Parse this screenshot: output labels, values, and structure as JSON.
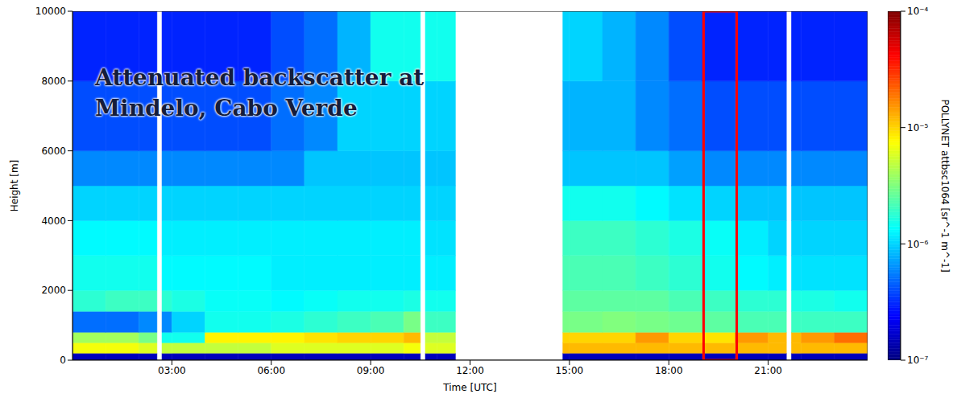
{
  "chart_data": {
    "type": "heatmap",
    "title": "Attenuated backscatter at Mindelo, Cabo Verde",
    "x_label": "Time [UTC]",
    "y_label": "Height [m]",
    "xlim": [
      0,
      24
    ],
    "xticks": [
      {
        "value": 3,
        "label": "03:00"
      },
      {
        "value": 6,
        "label": "06:00"
      },
      {
        "value": 9,
        "label": "09:00"
      },
      {
        "value": 12,
        "label": "12:00"
      },
      {
        "value": 15,
        "label": "15:00"
      },
      {
        "value": 18,
        "label": "18:00"
      },
      {
        "value": 21,
        "label": "21:00"
      }
    ],
    "ylim": [
      0,
      10000
    ],
    "yticks": [
      0,
      2000,
      4000,
      6000,
      8000,
      10000
    ],
    "x_edges": [
      0,
      1,
      2,
      2.55,
      2.7,
      3,
      4,
      5,
      6,
      7,
      8,
      9,
      10,
      10.5,
      10.65,
      11,
      11.56,
      14.8,
      15,
      16,
      17,
      18,
      19,
      20,
      21,
      21.55,
      21.7,
      22,
      23,
      24
    ],
    "y_edges": [
      0,
      200,
      500,
      800,
      1400,
      2000,
      3000,
      4000,
      5000,
      6000,
      8000,
      10000
    ],
    "cells": [
      [
        1.5e-07,
        1.5e-07,
        1.5e-07,
        null,
        1.5e-07,
        1.5e-07,
        1.5e-07,
        1.5e-07,
        1.5e-07,
        1.5e-07,
        1.5e-07,
        1.5e-07,
        1.5e-07,
        null,
        1.5e-07,
        1.5e-07,
        null,
        1.5e-07,
        1.5e-07,
        1.5e-07,
        1.5e-07,
        1.5e-07,
        1.5e-07,
        1.5e-07,
        1.5e-07,
        null,
        1.5e-07,
        1.5e-07,
        1.5e-07
      ],
      [
        7e-06,
        7e-06,
        6e-06,
        null,
        5e-06,
        5e-06,
        5e-06,
        5e-06,
        6e-06,
        6e-06,
        6e-06,
        6e-06,
        7e-06,
        null,
        6e-06,
        6e-06,
        null,
        1.2e-05,
        1.2e-05,
        1.2e-05,
        1.2e-05,
        1.2e-05,
        1.2e-05,
        1.2e-05,
        1.2e-05,
        null,
        1.2e-05,
        1.2e-05,
        1.2e-05
      ],
      [
        4e-06,
        4e-06,
        3e-06,
        null,
        1.5e-06,
        1.5e-06,
        8e-06,
        8e-06,
        8e-06,
        9e-06,
        1e-05,
        1e-05,
        1.2e-05,
        null,
        5e-06,
        5e-06,
        null,
        1e-05,
        1e-05,
        1e-05,
        1.5e-05,
        1e-05,
        9e-06,
        1.5e-05,
        1.2e-05,
        null,
        1.2e-05,
        1.5e-05,
        2e-05
      ],
      [
        5e-07,
        5e-07,
        6e-07,
        null,
        6e-07,
        1e-06,
        1.5e-06,
        1.5e-06,
        1.6e-06,
        1.8e-06,
        2e-06,
        2.2e-06,
        3e-06,
        null,
        2e-06,
        2e-06,
        null,
        3e-06,
        3e-06,
        3.2e-06,
        3e-06,
        2.8e-06,
        2.5e-06,
        2.2e-06,
        2.2e-06,
        null,
        2e-06,
        2e-06,
        2e-06
      ],
      [
        1.8e-06,
        2e-06,
        2e-06,
        null,
        1.8e-06,
        1.6e-06,
        1.4e-06,
        1.4e-06,
        1.3e-06,
        1.4e-06,
        1.5e-06,
        1.5e-06,
        1.6e-06,
        null,
        1.5e-06,
        1.5e-06,
        null,
        2.5e-06,
        2.5e-06,
        2.5e-06,
        2.5e-06,
        2.2e-06,
        2e-06,
        1.8e-06,
        1.8e-06,
        null,
        1.6e-06,
        1.6e-06,
        1.5e-06
      ],
      [
        1.5e-06,
        1.5e-06,
        1.5e-06,
        null,
        1.3e-06,
        1.3e-06,
        1.3e-06,
        1.3e-06,
        1.2e-06,
        1.2e-06,
        1.2e-06,
        1.2e-06,
        1.2e-06,
        null,
        1.2e-06,
        1.2e-06,
        null,
        2.2e-06,
        2.2e-06,
        2.2e-06,
        2e-06,
        1.8e-06,
        1.5e-06,
        1.3e-06,
        1.2e-06,
        null,
        1.1e-06,
        1.1e-06,
        1.1e-06
      ],
      [
        1.3e-06,
        1.3e-06,
        1.3e-06,
        null,
        1.2e-06,
        1.2e-06,
        1.2e-06,
        1.2e-06,
        1.2e-06,
        1.2e-06,
        1.2e-06,
        1.2e-06,
        1.2e-06,
        null,
        1.1e-06,
        1.1e-06,
        null,
        2e-06,
        2e-06,
        2e-06,
        1.8e-06,
        1.6e-06,
        1.4e-06,
        1.2e-06,
        1e-06,
        null,
        1e-06,
        1e-06,
        1e-06
      ],
      [
        1e-06,
        1e-06,
        1e-06,
        null,
        1e-06,
        1e-06,
        1e-06,
        1e-06,
        1e-06,
        1e-06,
        1e-06,
        1e-06,
        1e-06,
        null,
        1e-06,
        1e-06,
        null,
        1.5e-06,
        1.5e-06,
        1.5e-06,
        1.3e-06,
        1.1e-06,
        1e-06,
        9e-07,
        9e-07,
        null,
        9e-07,
        9e-07,
        9e-07
      ],
      [
        6e-07,
        6e-07,
        6e-07,
        null,
        6e-07,
        6e-07,
        6e-07,
        6e-07,
        6e-07,
        9e-07,
        9e-07,
        9e-07,
        9e-07,
        null,
        9e-07,
        9e-07,
        null,
        9e-07,
        9e-07,
        9e-07,
        9e-07,
        7e-07,
        6e-07,
        6e-07,
        6e-07,
        null,
        6e-07,
        6e-07,
        6e-07
      ],
      [
        4e-07,
        4e-07,
        4e-07,
        null,
        4e-07,
        4e-07,
        4e-07,
        4e-07,
        5e-07,
        6e-07,
        1e-06,
        1e-06,
        1e-06,
        null,
        1e-06,
        1e-06,
        null,
        8e-07,
        8e-07,
        8e-07,
        6e-07,
        5e-07,
        4e-07,
        4e-07,
        4e-07,
        null,
        4e-07,
        4e-07,
        4e-07
      ],
      [
        3e-07,
        3e-07,
        3e-07,
        null,
        3e-07,
        3e-07,
        3e-07,
        3e-07,
        4e-07,
        5e-07,
        8e-07,
        1.5e-06,
        1.5e-06,
        null,
        1.5e-06,
        1.5e-06,
        null,
        1e-06,
        1e-06,
        8e-07,
        6e-07,
        4e-07,
        3e-07,
        3e-07,
        3e-07,
        null,
        3e-07,
        3e-07,
        3e-07
      ]
    ],
    "colorbar_label": "POLLYNET attbsc1064 [sr^-1 m^-1]",
    "colorbar_range": [
      1e-07,
      0.0001
    ],
    "colorbar_ticks": [
      {
        "value": 1e-07,
        "label": "10⁻⁷"
      },
      {
        "value": 1e-06,
        "label": "10⁻⁶"
      },
      {
        "value": 1e-05,
        "label": "10⁻⁵"
      },
      {
        "value": 0.0001,
        "label": "10⁻⁴"
      }
    ],
    "highlight": {
      "x": [
        19.05,
        20.05
      ],
      "color": "#ff0000"
    }
  }
}
